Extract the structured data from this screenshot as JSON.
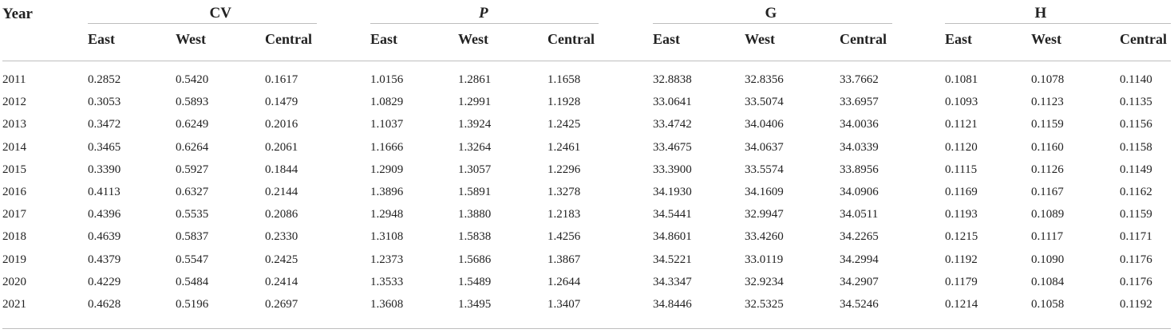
{
  "table": {
    "year_header": "Year",
    "groups": [
      {
        "label": "CV",
        "italic": false
      },
      {
        "label": "P",
        "italic": true
      },
      {
        "label": "G",
        "italic": false
      },
      {
        "label": "H",
        "italic": false
      }
    ],
    "subheaders": [
      "East",
      "West",
      "Central"
    ],
    "rows": [
      {
        "year": "2011",
        "values": [
          "0.2852",
          "0.5420",
          "0.1617",
          "1.0156",
          "1.2861",
          "1.1658",
          "32.8838",
          "32.8356",
          "33.7662",
          "0.1081",
          "0.1078",
          "0.1140"
        ]
      },
      {
        "year": "2012",
        "values": [
          "0.3053",
          "0.5893",
          "0.1479",
          "1.0829",
          "1.2991",
          "1.1928",
          "33.0641",
          "33.5074",
          "33.6957",
          "0.1093",
          "0.1123",
          "0.1135"
        ]
      },
      {
        "year": "2013",
        "values": [
          "0.3472",
          "0.6249",
          "0.2016",
          "1.1037",
          "1.3924",
          "1.2425",
          "33.4742",
          "34.0406",
          "34.0036",
          "0.1121",
          "0.1159",
          "0.1156"
        ]
      },
      {
        "year": "2014",
        "values": [
          "0.3465",
          "0.6264",
          "0.2061",
          "1.1666",
          "1.3264",
          "1.2461",
          "33.4675",
          "34.0637",
          "34.0339",
          "0.1120",
          "0.1160",
          "0.1158"
        ]
      },
      {
        "year": "2015",
        "values": [
          "0.3390",
          "0.5927",
          "0.1844",
          "1.2909",
          "1.3057",
          "1.2296",
          "33.3900",
          "33.5574",
          "33.8956",
          "0.1115",
          "0.1126",
          "0.1149"
        ]
      },
      {
        "year": "2016",
        "values": [
          "0.4113",
          "0.6327",
          "0.2144",
          "1.3896",
          "1.5891",
          "1.3278",
          "34.1930",
          "34.1609",
          "34.0906",
          "0.1169",
          "0.1167",
          "0.1162"
        ]
      },
      {
        "year": "2017",
        "values": [
          "0.4396",
          "0.5535",
          "0.2086",
          "1.2948",
          "1.3880",
          "1.2183",
          "34.5441",
          "32.9947",
          "34.0511",
          "0.1193",
          "0.1089",
          "0.1159"
        ]
      },
      {
        "year": "2018",
        "values": [
          "0.4639",
          "0.5837",
          "0.2330",
          "1.3108",
          "1.5838",
          "1.4256",
          "34.8601",
          "33.4260",
          "34.2265",
          "0.1215",
          "0.1117",
          "0.1171"
        ]
      },
      {
        "year": "2019",
        "values": [
          "0.4379",
          "0.5547",
          "0.2425",
          "1.2373",
          "1.5686",
          "1.3867",
          "34.5221",
          "33.0119",
          "34.2994",
          "0.1192",
          "0.1090",
          "0.1176"
        ]
      },
      {
        "year": "2020",
        "values": [
          "0.4229",
          "0.5484",
          "0.2414",
          "1.3533",
          "1.5489",
          "1.2644",
          "34.3347",
          "32.9234",
          "34.2907",
          "0.1179",
          "0.1084",
          "0.1176"
        ]
      },
      {
        "year": "2021",
        "values": [
          "0.4628",
          "0.5196",
          "0.2697",
          "1.3608",
          "1.3495",
          "1.3407",
          "34.8446",
          "32.5325",
          "34.5246",
          "0.1214",
          "0.1058",
          "0.1192"
        ]
      }
    ]
  }
}
